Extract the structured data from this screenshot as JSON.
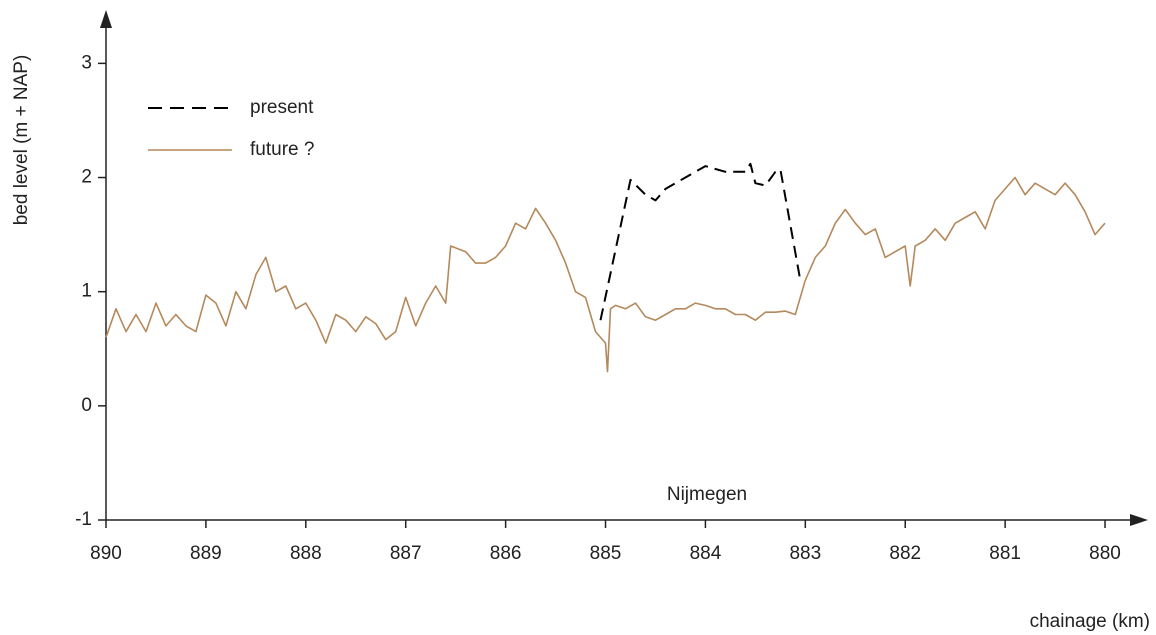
{
  "chart_data": {
    "type": "line",
    "xlabel": "chainage (km)",
    "ylabel": "bed level (m + NAP)",
    "annotation": "Nijmegen",
    "xlim": [
      890,
      879.6
    ],
    "ylim": [
      -1,
      3.45
    ],
    "xticks": [
      890,
      889,
      888,
      887,
      886,
      885,
      884,
      883,
      882,
      881,
      880
    ],
    "yticks": [
      -1,
      0,
      1,
      2,
      3
    ],
    "grid": false,
    "legend": "upper left",
    "series": [
      {
        "name": "present",
        "color": "#000000",
        "dashed": true,
        "x": [
          885.05,
          884.75,
          884.6,
          884.5,
          884.4,
          884.2,
          884.0,
          883.8,
          883.6,
          883.55,
          883.5,
          883.4,
          883.3,
          883.25,
          883.05
        ],
        "values": [
          0.75,
          1.98,
          1.85,
          1.8,
          1.9,
          2.0,
          2.1,
          2.05,
          2.05,
          2.12,
          1.95,
          1.93,
          2.05,
          2.07,
          1.1
        ]
      },
      {
        "name": "future ?",
        "color": "#b5895c",
        "dashed": false,
        "x": [
          890.0,
          889.9,
          889.8,
          889.7,
          889.6,
          889.5,
          889.4,
          889.3,
          889.2,
          889.1,
          889.0,
          888.9,
          888.8,
          888.7,
          888.6,
          888.5,
          888.4,
          888.3,
          888.2,
          888.1,
          888.0,
          887.9,
          887.8,
          887.7,
          887.6,
          887.5,
          887.4,
          887.3,
          887.2,
          887.1,
          887.0,
          886.9,
          886.8,
          886.7,
          886.6,
          886.55,
          886.4,
          886.3,
          886.2,
          886.1,
          886.0,
          885.9,
          885.8,
          885.7,
          885.6,
          885.5,
          885.4,
          885.3,
          885.2,
          885.1,
          885.0,
          884.98,
          884.95,
          884.9,
          884.8,
          884.7,
          884.6,
          884.5,
          884.4,
          884.3,
          884.2,
          884.1,
          884.0,
          883.9,
          883.8,
          883.7,
          883.6,
          883.5,
          883.4,
          883.3,
          883.2,
          883.1,
          883.0,
          882.9,
          882.8,
          882.7,
          882.6,
          882.5,
          882.4,
          882.3,
          882.2,
          882.1,
          882.0,
          881.95,
          881.9,
          881.8,
          881.7,
          881.6,
          881.5,
          881.4,
          881.3,
          881.2,
          881.1,
          881.0,
          880.9,
          880.8,
          880.7,
          880.6,
          880.5,
          880.4,
          880.3,
          880.2,
          880.1,
          880.0
        ],
        "values": [
          0.6,
          0.85,
          0.65,
          0.8,
          0.65,
          0.9,
          0.7,
          0.8,
          0.7,
          0.65,
          0.97,
          0.9,
          0.7,
          1.0,
          0.85,
          1.15,
          1.3,
          1.0,
          1.05,
          0.85,
          0.9,
          0.75,
          0.55,
          0.8,
          0.75,
          0.65,
          0.78,
          0.72,
          0.58,
          0.65,
          0.95,
          0.7,
          0.9,
          1.05,
          0.9,
          1.4,
          1.35,
          1.25,
          1.25,
          1.3,
          1.4,
          1.6,
          1.55,
          1.73,
          1.6,
          1.45,
          1.25,
          1.0,
          0.95,
          0.65,
          0.55,
          0.3,
          0.85,
          0.88,
          0.85,
          0.9,
          0.78,
          0.75,
          0.8,
          0.85,
          0.85,
          0.9,
          0.88,
          0.85,
          0.85,
          0.8,
          0.8,
          0.75,
          0.82,
          0.82,
          0.83,
          0.8,
          1.1,
          1.3,
          1.4,
          1.6,
          1.72,
          1.6,
          1.5,
          1.55,
          1.3,
          1.35,
          1.4,
          1.05,
          1.4,
          1.45,
          1.55,
          1.45,
          1.6,
          1.65,
          1.7,
          1.55,
          1.8,
          1.9,
          2.0,
          1.85,
          1.95,
          1.9,
          1.85,
          1.95,
          1.85,
          1.7,
          1.5,
          1.6
        ]
      }
    ]
  }
}
